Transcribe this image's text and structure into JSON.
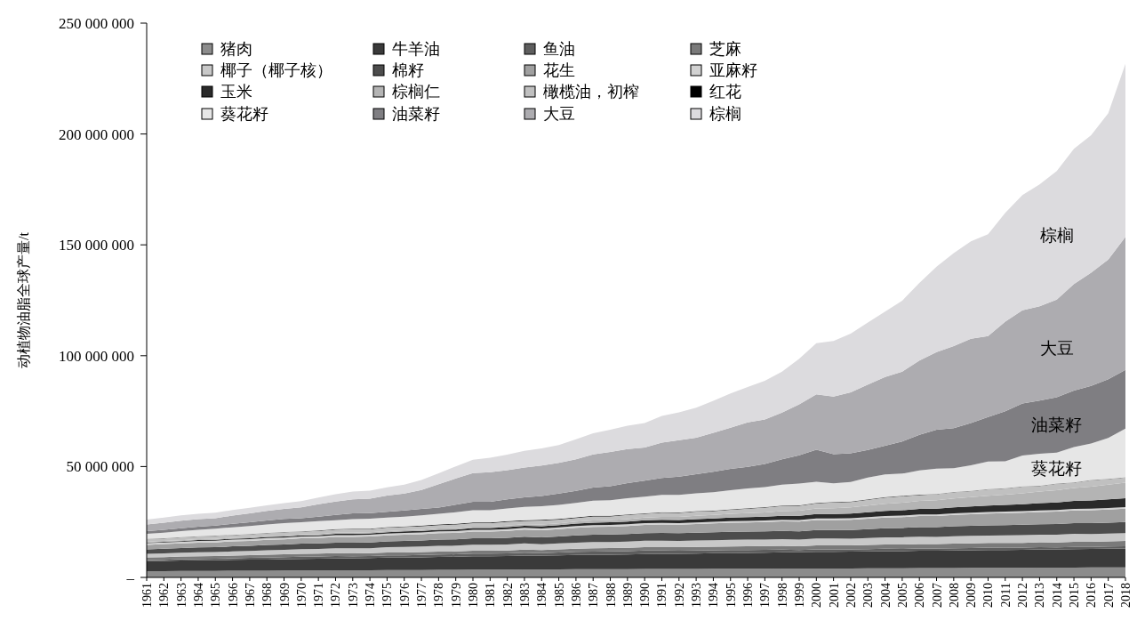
{
  "chart_data": {
    "type": "area",
    "stacked": true,
    "ylabel": "动植物油脂全球产量/t",
    "legend": "top left",
    "categories": [
      "1961",
      "1962",
      "1963",
      "1964",
      "1965",
      "1966",
      "1967",
      "1968",
      "1969",
      "1970",
      "1971",
      "1972",
      "1973",
      "1974",
      "1975",
      "1976",
      "1977",
      "1978",
      "1979",
      "1980",
      "1981",
      "1982",
      "1983",
      "1984",
      "1985",
      "1986",
      "1987",
      "1988",
      "1989",
      "1990",
      "1991",
      "1992",
      "1993",
      "1994",
      "1995",
      "1996",
      "1997",
      "1998",
      "1999",
      "2000",
      "2001",
      "2002",
      "2003",
      "2004",
      "2005",
      "2006",
      "2007",
      "2008",
      "2009",
      "2010",
      "2011",
      "2012",
      "2013",
      "2014",
      "2015",
      "2016",
      "2017",
      "2018"
    ],
    "ylim": [
      0,
      250000000
    ],
    "yticks": [
      {
        "value": 0,
        "label": "–"
      },
      {
        "value": 50000000,
        "label": "50 000 000"
      },
      {
        "value": 100000000,
        "label": "100 000 000"
      },
      {
        "value": 150000000,
        "label": "150 000 000"
      },
      {
        "value": 200000000,
        "label": "200 000 000"
      },
      {
        "value": 250000000,
        "label": "250 000 000"
      }
    ],
    "series": [
      {
        "name": "猪肉",
        "color": "#8c8c8c",
        "values": [
          2800000.0,
          2800000.0,
          2900000.0,
          2900000.0,
          2900000.0,
          3000000.0,
          3000000.0,
          3000000.0,
          3100000.0,
          3100000.0,
          3100000.0,
          3200000.0,
          3200000.0,
          3200000.0,
          3300000.0,
          3300000.0,
          3300000.0,
          3400000.0,
          3400000.0,
          3500000.0,
          3500000.0,
          3500000.0,
          3600000.0,
          3600000.0,
          3600000.0,
          3700000.0,
          3700000.0,
          3700000.0,
          3700000.0,
          3800000.0,
          3800000.0,
          3800000.0,
          3800000.0,
          3900000.0,
          3900000.0,
          3900000.0,
          3900000.0,
          4000000.0,
          4000000.0,
          4000000.0,
          4000000.0,
          4000000.0,
          4100000.0,
          4100000.0,
          4100000.0,
          4200000.0,
          4200000.0,
          4200000.0,
          4300000.0,
          4300000.0,
          4300000.0,
          4300000.0,
          4400000.0,
          4400000.0,
          4400000.0,
          4500000.0,
          4500000.0,
          4500000.0
        ]
      },
      {
        "name": "牛羊油",
        "color": "#3a3a3a",
        "values": [
          4500000.0,
          4600000.0,
          4700000.0,
          4800000.0,
          4800000.0,
          4900000.0,
          5000000.0,
          5000000.0,
          5100000.0,
          5200000.0,
          5300000.0,
          5300000.0,
          5400000.0,
          5500000.0,
          5600000.0,
          5600000.0,
          5700000.0,
          5800000.0,
          5900000.0,
          6000000.0,
          6000000.0,
          6100000.0,
          6200000.0,
          6200000.0,
          6300000.0,
          6400000.0,
          6500000.0,
          6500000.0,
          6600000.0,
          6700000.0,
          6800000.0,
          6800000.0,
          6900000.0,
          7000000.0,
          7000000.0,
          7100000.0,
          7200000.0,
          7300000.0,
          7400000.0,
          7500000.0,
          7500000.0,
          7600000.0,
          7600000.0,
          7700000.0,
          7700000.0,
          7800000.0,
          7800000.0,
          7900000.0,
          7900000.0,
          8000000.0,
          8000000.0,
          8100000.0,
          8200000.0,
          8200000.0,
          8300000.0,
          8300000.0,
          8400000.0,
          8500000.0
        ]
      },
      {
        "name": "鱼油",
        "color": "#5e5e5e",
        "values": [
          500000.0,
          500000.0,
          600000.0,
          600000.0,
          700000.0,
          700000.0,
          800000.0,
          900000.0,
          900000.0,
          1000000.0,
          1000000.0,
          1100000.0,
          900000.0,
          900000.0,
          1000000.0,
          1000000.0,
          1100000.0,
          1100000.0,
          1100000.0,
          1200000.0,
          1200000.0,
          1200000.0,
          1300000.0,
          1100000.0,
          1300000.0,
          1400000.0,
          1400000.0,
          1500000.0,
          1500000.0,
          1600000.0,
          1500000.0,
          1400000.0,
          1400000.0,
          1300000.0,
          1400000.0,
          1300000.0,
          1300000.0,
          1200000.0,
          900000.0,
          1100000.0,
          1100000.0,
          1000000.0,
          1000000.0,
          1100000.0,
          1000000.0,
          1000000.0,
          1000000.0,
          1000000.0,
          1000000.0,
          1100000.0,
          1000000.0,
          1000000.0,
          1000000.0,
          900000.0,
          1000000.0,
          900000.0,
          1000000.0,
          1000000.0
        ]
      },
      {
        "name": "芝麻",
        "color": "#7a7a7a",
        "values": [
          1200000.0,
          1200000.0,
          1200000.0,
          1200000.0,
          1200000.0,
          1200000.0,
          1200000.0,
          1300000.0,
          1300000.0,
          1300000.0,
          1300000.0,
          1300000.0,
          1300000.0,
          1300000.0,
          1300000.0,
          1300000.0,
          1300000.0,
          1300000.0,
          1300000.0,
          1300000.0,
          1300000.0,
          1300000.0,
          1400000.0,
          1400000.0,
          1400000.0,
          1400000.0,
          1500000.0,
          1500000.0,
          1500000.0,
          1500000.0,
          1500000.0,
          1600000.0,
          1600000.0,
          1600000.0,
          1600000.0,
          1700000.0,
          1700000.0,
          1700000.0,
          1700000.0,
          1800000.0,
          1800000.0,
          1800000.0,
          1900000.0,
          1900000.0,
          2000000.0,
          2000000.0,
          2000000.0,
          2100000.0,
          2100000.0,
          2100000.0,
          2200000.0,
          2200000.0,
          2300000.0,
          2300000.0,
          2400000.0,
          2400000.0,
          2400000.0,
          2500000.0
        ]
      },
      {
        "name": "椰子（椰子核）",
        "color": "#c8c8c8",
        "values": [
          1600000.0,
          1700000.0,
          1700000.0,
          1800000.0,
          1800000.0,
          1900000.0,
          1900000.0,
          2000000.0,
          2000000.0,
          2100000.0,
          2100000.0,
          2200000.0,
          2300000.0,
          2200000.0,
          2400000.0,
          2500000.0,
          2500000.0,
          2600000.0,
          2600000.0,
          2700000.0,
          2700000.0,
          2700000.0,
          2800000.0,
          2600000.0,
          2700000.0,
          2800000.0,
          2900000.0,
          2800000.0,
          2900000.0,
          3000000.0,
          3000000.0,
          2900000.0,
          3000000.0,
          3000000.0,
          3100000.0,
          3100000.0,
          3000000.0,
          3100000.0,
          3100000.0,
          3200000.0,
          3200000.0,
          3100000.0,
          3200000.0,
          3300000.0,
          3300000.0,
          3400000.0,
          3300000.0,
          3400000.0,
          3500000.0,
          3400000.0,
          3500000.0,
          3500000.0,
          3400000.0,
          3500000.0,
          3600000.0,
          3500000.0,
          3500000.0,
          3500000.0
        ]
      },
      {
        "name": "棉籽",
        "color": "#4d4d4d",
        "values": [
          2000000.0,
          2100000.0,
          2100000.0,
          2200000.0,
          2200000.0,
          2300000.0,
          2300000.0,
          2400000.0,
          2400000.0,
          2500000.0,
          2500000.0,
          2600000.0,
          2600000.0,
          2700000.0,
          2700000.0,
          2800000.0,
          2800000.0,
          2900000.0,
          2900000.0,
          3000000.0,
          3000000.0,
          3100000.0,
          3100000.0,
          3200000.0,
          3200000.0,
          3300000.0,
          3300000.0,
          3400000.0,
          3400000.0,
          3400000.0,
          3500000.0,
          3500000.0,
          3500000.0,
          3600000.0,
          3600000.0,
          3600000.0,
          3700000.0,
          3700000.0,
          3700000.0,
          3800000.0,
          3800000.0,
          3900000.0,
          4000000.0,
          4100000.0,
          4200000.0,
          4300000.0,
          4400000.0,
          4500000.0,
          4500000.0,
          4600000.0,
          4600000.0,
          4700000.0,
          4700000.0,
          4800000.0,
          4800000.0,
          4900000.0,
          4900000.0,
          5000000.0
        ]
      },
      {
        "name": "花生",
        "color": "#a0a0a0",
        "values": [
          2000000.0,
          2100000.0,
          2100000.0,
          2200000.0,
          2200000.0,
          2300000.0,
          2300000.0,
          2400000.0,
          2400000.0,
          2500000.0,
          2500000.0,
          2600000.0,
          2600000.0,
          2700000.0,
          2700000.0,
          2800000.0,
          2800000.0,
          2900000.0,
          2900000.0,
          3000000.0,
          3000000.0,
          3100000.0,
          3200000.0,
          3200000.0,
          3300000.0,
          3400000.0,
          3500000.0,
          3500000.0,
          3600000.0,
          3700000.0,
          3800000.0,
          3800000.0,
          3900000.0,
          4000000.0,
          4100000.0,
          4100000.0,
          4200000.0,
          4300000.0,
          4400000.0,
          4500000.0,
          4500000.0,
          4600000.0,
          4700000.0,
          4800000.0,
          4900000.0,
          5000000.0,
          5000000.0,
          5100000.0,
          5200000.0,
          5300000.0,
          5400000.0,
          5400000.0,
          5500000.0,
          5600000.0,
          5700000.0,
          5800000.0,
          5900000.0,
          6000000.0
        ]
      },
      {
        "name": "亚麻籽",
        "color": "#d2d2d2",
        "values": [
          800000.0,
          800000.0,
          800000.0,
          800000.0,
          800000.0,
          800000.0,
          800000.0,
          800000.0,
          800000.0,
          800000.0,
          800000.0,
          800000.0,
          800000.0,
          800000.0,
          800000.0,
          800000.0,
          800000.0,
          800000.0,
          800000.0,
          800000.0,
          800000.0,
          800000.0,
          800000.0,
          800000.0,
          800000.0,
          800000.0,
          800000.0,
          800000.0,
          800000.0,
          800000.0,
          700000.0,
          700000.0,
          700000.0,
          700000.0,
          700000.0,
          700000.0,
          700000.0,
          700000.0,
          700000.0,
          700000.0,
          700000.0,
          700000.0,
          700000.0,
          700000.0,
          700000.0,
          700000.0,
          700000.0,
          700000.0,
          700000.0,
          700000.0,
          700000.0,
          700000.0,
          700000.0,
          700000.0,
          700000.0,
          700000.0,
          700000.0,
          700000.0
        ]
      },
      {
        "name": "玉米",
        "color": "#2a2a2a",
        "values": [
          300000.0,
          300000.0,
          300000.0,
          400000.0,
          400000.0,
          400000.0,
          400000.0,
          500000.0,
          500000.0,
          500000.0,
          500000.0,
          600000.0,
          600000.0,
          600000.0,
          600000.0,
          700000.0,
          700000.0,
          700000.0,
          700000.0,
          800000.0,
          800000.0,
          900000.0,
          900000.0,
          1000000.0,
          1000000.0,
          1100000.0,
          1100000.0,
          1200000.0,
          1200000.0,
          1300000.0,
          1400000.0,
          1400000.0,
          1500000.0,
          1500000.0,
          1600000.0,
          1700000.0,
          1700000.0,
          1800000.0,
          1900000.0,
          2000000.0,
          2000000.0,
          2100000.0,
          2200000.0,
          2300000.0,
          2400000.0,
          2500000.0,
          2600000.0,
          2700000.0,
          2800000.0,
          2900000.0,
          3000000.0,
          3100000.0,
          3300000.0,
          3400000.0,
          3600000.0,
          3700000.0,
          3900000.0,
          4000000.0
        ]
      },
      {
        "name": "棕榈仁",
        "color": "#b4b4b4",
        "values": [
          400000.0,
          400000.0,
          400000.0,
          400000.0,
          400000.0,
          400000.0,
          400000.0,
          400000.0,
          400000.0,
          400000.0,
          400000.0,
          500000.0,
          500000.0,
          500000.0,
          500000.0,
          500000.0,
          500000.0,
          600000.0,
          600000.0,
          600000.0,
          600000.0,
          700000.0,
          700000.0,
          800000.0,
          800000.0,
          900000.0,
          1000000.0,
          1000000.0,
          1100000.0,
          1200000.0,
          1300000.0,
          1400000.0,
          1500000.0,
          1600000.0,
          1700000.0,
          1800000.0,
          1900000.0,
          2100000.0,
          2300000.0,
          2500000.0,
          2600000.0,
          2800000.0,
          3000000.0,
          3200000.0,
          3400000.0,
          3600000.0,
          3800000.0,
          4000000.0,
          4200000.0,
          4400000.0,
          4600000.0,
          4900000.0,
          5200000.0,
          5500000.0,
          5800000.0,
          6200000.0,
          6600000.0,
          7000000.0
        ]
      },
      {
        "name": "橄榄油，初榨",
        "color": "#c0c0c0",
        "values": [
          1200000.0,
          1100000.0,
          1300000.0,
          1200000.0,
          1400000.0,
          1200000.0,
          1400000.0,
          1300000.0,
          1500000.0,
          1300000.0,
          1500000.0,
          1400000.0,
          1600000.0,
          1400000.0,
          1600000.0,
          1500000.0,
          1600000.0,
          1500000.0,
          1700000.0,
          1600000.0,
          1600000.0,
          1700000.0,
          1500000.0,
          1800000.0,
          1700000.0,
          1600000.0,
          1800000.0,
          1600000.0,
          1900000.0,
          1700000.0,
          1900000.0,
          1800000.0,
          1900000.0,
          1700000.0,
          1800000.0,
          2000000.0,
          2200000.0,
          2300000.0,
          2200000.0,
          2300000.0,
          2600000.0,
          2400000.0,
          2600000.0,
          2800000.0,
          2900000.0,
          2600000.0,
          2700000.0,
          2800000.0,
          2700000.0,
          2900000.0,
          2800000.0,
          3000000.0,
          2500000.0,
          2900000.0,
          2400000.0,
          2900000.0,
          2500000.0,
          2300000.0
        ]
      },
      {
        "name": "红花",
        "color": "#000000",
        "values": [
          100000.0,
          100000.0,
          100000.0,
          100000.0,
          100000.0,
          100000.0,
          100000.0,
          100000.0,
          100000.0,
          100000.0,
          200000.0,
          200000.0,
          200000.0,
          200000.0,
          200000.0,
          200000.0,
          300000.0,
          300000.0,
          300000.0,
          300000.0,
          300000.0,
          300000.0,
          300000.0,
          300000.0,
          300000.0,
          300000.0,
          300000.0,
          300000.0,
          200000.0,
          200000.0,
          200000.0,
          200000.0,
          200000.0,
          200000.0,
          200000.0,
          200000.0,
          200000.0,
          200000.0,
          200000.0,
          200000.0,
          200000.0,
          200000.0,
          200000.0,
          200000.0,
          200000.0,
          200000.0,
          100000.0,
          100000.0,
          100000.0,
          100000.0,
          100000.0,
          100000.0,
          100000.0,
          100000.0,
          100000.0,
          100000.0,
          100000.0,
          100000.0
        ]
      },
      {
        "name": "葵花籽",
        "color": "#e6e6e6",
        "values": [
          2300000.0,
          2500000.0,
          2700000.0,
          2900000.0,
          3100000.0,
          3400000.0,
          3600000.0,
          3800000.0,
          4000000.0,
          4100000.0,
          4200000.0,
          4000000.0,
          4300000.0,
          4500000.0,
          4300000.0,
          4400000.0,
          4600000.0,
          4800000.0,
          5200000.0,
          5500000.0,
          5500000.0,
          5700000.0,
          6000000.0,
          6100000.0,
          6300000.0,
          6500000.0,
          6800000.0,
          7000000.0,
          7300000.0,
          7500000.0,
          7800000.0,
          7900000.0,
          8000000.0,
          8300000.0,
          8600000.0,
          8900000.0,
          9000000.0,
          9400000.0,
          9800000.0,
          9500000.0,
          8400000.0,
          8800000.0,
          9800000.0,
          10200000.0,
          10000000.0,
          11000000.0,
          11500000.0,
          10800000.0,
          11600000.0,
          12500000.0,
          12200000.0,
          14000000.0,
          14500000.0,
          14000000.0,
          16000000.0,
          16500000.0,
          18500000.0,
          22000000.0
        ]
      },
      {
        "name": "油菜籽",
        "color": "#7f7e82",
        "values": [
          1200000.0,
          1300000.0,
          1300000.0,
          1400000.0,
          1400000.0,
          1600000.0,
          1700000.0,
          1800000.0,
          1900000.0,
          1800000.0,
          2000000.0,
          2400000.0,
          2600000.0,
          2500000.0,
          2600000.0,
          2800000.0,
          2900000.0,
          2800000.0,
          3400000.0,
          3800000.0,
          3800000.0,
          4100000.0,
          4300000.0,
          4600000.0,
          5100000.0,
          5400000.0,
          5900000.0,
          6300000.0,
          6800000.0,
          7200000.0,
          7600000.0,
          8200000.0,
          8600000.0,
          9300000.0,
          9700000.0,
          9800000.0,
          10500000.0,
          11500000.0,
          12800000.0,
          14500000.0,
          13200000.0,
          13000000.0,
          12500000.0,
          13000000.0,
          14500000.0,
          16000000.0,
          17500000.0,
          18000000.0,
          19000000.0,
          20000000.0,
          22500000.0,
          23500000.0,
          24000000.0,
          25000000.0,
          25500000.0,
          26000000.0,
          26500000.0,
          26500000.0
        ]
      },
      {
        "name": "大豆",
        "color": "#adacb0",
        "values": [
          3000000.0,
          3200000.0,
          3400000.0,
          3400000.0,
          3300000.0,
          3700000.0,
          4000000.0,
          4300000.0,
          4500000.0,
          4900000.0,
          5600000.0,
          6000000.0,
          6300000.0,
          6500000.0,
          7300000.0,
          7600000.0,
          8500000.0,
          10500000.0,
          11800000.0,
          13000000.0,
          13400000.0,
          13200000.0,
          13500000.0,
          13800000.0,
          13900000.0,
          14300000.0,
          15000000.0,
          15500000.0,
          15400000.0,
          15000000.0,
          16000000.0,
          16500000.0,
          16500000.0,
          17500000.0,
          18500000.0,
          20000000.0,
          20000000.0,
          21000000.0,
          23000000.0,
          25000000.0,
          26000000.0,
          27500000.0,
          29500000.0,
          31000000.0,
          31500000.0,
          33500000.0,
          35000000.0,
          37000000.0,
          38000000.0,
          36500000.0,
          40500000.0,
          42000000.0,
          42500000.0,
          44000000.0,
          48000000.0,
          51000000.0,
          54000000.0,
          60000000.0
        ]
      },
      {
        "name": "棕榈",
        "color": "#dcdbde",
        "values": [
          2200000.0,
          2300000.0,
          2400000.0,
          2400000.0,
          2500000.0,
          2500000.0,
          2500000.0,
          2500000.0,
          2600000.0,
          2800000.0,
          3000000.0,
          3300000.0,
          3500000.0,
          3600000.0,
          3700000.0,
          4000000.0,
          4500000.0,
          5000000.0,
          5500000.0,
          6000000.0,
          6500000.0,
          7000000.0,
          7500000.0,
          7700000.0,
          8000000.0,
          9000000.0,
          9500000.0,
          10000000.0,
          10500000.0,
          11000000.0,
          12000000.0,
          12500000.0,
          13500000.0,
          14500000.0,
          15500000.0,
          16000000.0,
          17500000.0,
          18500000.0,
          20500000.0,
          23000000.0,
          25000000.0,
          26500000.0,
          28000000.0,
          29500000.0,
          32000000.0,
          35000000.0,
          38500000.0,
          42000000.0,
          44000000.0,
          46000000.0,
          49000000.0,
          52000000.0,
          55000000.0,
          58000000.0,
          61000000.0,
          62000000.0,
          66000000.0,
          78000000.0
        ]
      }
    ],
    "annotations": [
      "棕榈",
      "大豆",
      "油菜籽",
      "葵花籽"
    ]
  }
}
